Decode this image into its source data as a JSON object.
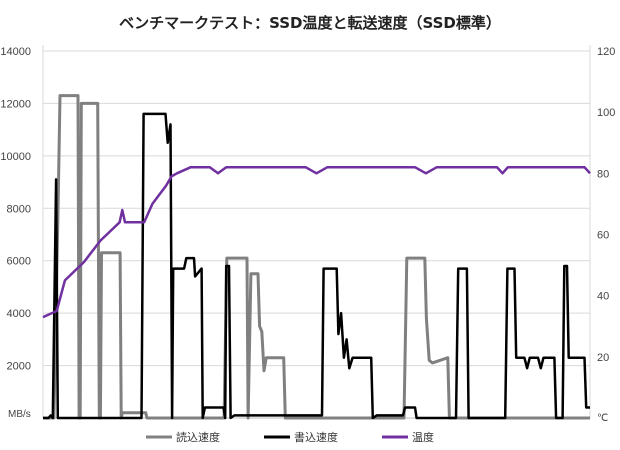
{
  "chart_data": {
    "type": "line",
    "title": "ベンチマークテスト：SSD温度と転送速度（SSD標準）",
    "y_left_unit": "MB/s",
    "y_right_unit": "℃",
    "y_left_ticks": [
      "14000",
      "12000",
      "10000",
      "8000",
      "6000",
      "4000",
      "2000"
    ],
    "y_right_ticks": [
      "120",
      "100",
      "80",
      "60",
      "40",
      "20"
    ],
    "ylim_left": [
      0,
      14000
    ],
    "ylim_right": [
      0,
      120
    ],
    "grid": true,
    "legend_position": "bottom",
    "x_range": [
      0,
      1000
    ],
    "series": [
      {
        "name": "読込速度",
        "color": "#808080",
        "axis": "left",
        "points": [
          [
            0,
            0
          ],
          [
            20,
            0
          ],
          [
            28,
            8500
          ],
          [
            31,
            12300
          ],
          [
            64,
            12300
          ],
          [
            66,
            0
          ],
          [
            68,
            0
          ],
          [
            70,
            12000
          ],
          [
            100,
            12000
          ],
          [
            103,
            0
          ],
          [
            105,
            0
          ],
          [
            107,
            6300
          ],
          [
            141,
            6300
          ],
          [
            143,
            0
          ],
          [
            145,
            200
          ],
          [
            188,
            200
          ],
          [
            190,
            0
          ],
          [
            331,
            0
          ],
          [
            336,
            6100
          ],
          [
            373,
            6100
          ],
          [
            375,
            0
          ],
          [
            380,
            5500
          ],
          [
            393,
            5500
          ],
          [
            396,
            3500
          ],
          [
            400,
            3300
          ],
          [
            404,
            1800
          ],
          [
            408,
            2300
          ],
          [
            440,
            2300
          ],
          [
            443,
            0
          ],
          [
            660,
            0
          ],
          [
            665,
            6100
          ],
          [
            698,
            6100
          ],
          [
            701,
            3800
          ],
          [
            706,
            2200
          ],
          [
            712,
            2100
          ],
          [
            740,
            2300
          ],
          [
            743,
            0
          ],
          [
            1000,
            0
          ]
        ]
      },
      {
        "name": "書込速度",
        "color": "#000000",
        "axis": "left",
        "points": [
          [
            0,
            0
          ],
          [
            10,
            0
          ],
          [
            14,
            100
          ],
          [
            18,
            0
          ],
          [
            24,
            9100
          ],
          [
            27,
            0
          ],
          [
            180,
            0
          ],
          [
            184,
            11600
          ],
          [
            224,
            11600
          ],
          [
            228,
            10500
          ],
          [
            233,
            11200
          ],
          [
            236,
            0
          ],
          [
            238,
            5700
          ],
          [
            258,
            5700
          ],
          [
            262,
            6100
          ],
          [
            276,
            6100
          ],
          [
            278,
            5400
          ],
          [
            290,
            5700
          ],
          [
            292,
            0
          ],
          [
            296,
            400
          ],
          [
            330,
            400
          ],
          [
            333,
            0
          ],
          [
            335,
            5800
          ],
          [
            340,
            5800
          ],
          [
            343,
            0
          ],
          [
            350,
            100
          ],
          [
            510,
            100
          ],
          [
            513,
            5700
          ],
          [
            537,
            5700
          ],
          [
            540,
            3200
          ],
          [
            545,
            4000
          ],
          [
            550,
            2300
          ],
          [
            555,
            3000
          ],
          [
            560,
            1900
          ],
          [
            566,
            2300
          ],
          [
            600,
            2300
          ],
          [
            603,
            0
          ],
          [
            610,
            100
          ],
          [
            658,
            100
          ],
          [
            662,
            400
          ],
          [
            680,
            400
          ],
          [
            683,
            0
          ],
          [
            755,
            0
          ],
          [
            759,
            5700
          ],
          [
            775,
            5700
          ],
          [
            778,
            0
          ],
          [
            800,
            0
          ],
          [
            845,
            0
          ],
          [
            849,
            5700
          ],
          [
            862,
            5700
          ],
          [
            865,
            2300
          ],
          [
            880,
            2300
          ],
          [
            885,
            1900
          ],
          [
            890,
            2300
          ],
          [
            905,
            2300
          ],
          [
            910,
            1900
          ],
          [
            915,
            2300
          ],
          [
            935,
            2300
          ],
          [
            938,
            0
          ],
          [
            950,
            0
          ],
          [
            953,
            5800
          ],
          [
            958,
            5800
          ],
          [
            961,
            2300
          ],
          [
            990,
            2300
          ],
          [
            993,
            400
          ],
          [
            1000,
            400
          ]
        ]
      },
      {
        "name": "温度",
        "color": "#7030A0",
        "axis": "right",
        "points": [
          [
            0,
            33
          ],
          [
            25,
            35
          ],
          [
            40,
            45
          ],
          [
            75,
            51
          ],
          [
            105,
            58
          ],
          [
            140,
            64
          ],
          [
            145,
            68
          ],
          [
            150,
            64
          ],
          [
            185,
            64
          ],
          [
            200,
            70
          ],
          [
            225,
            76
          ],
          [
            235,
            79
          ],
          [
            245,
            80
          ],
          [
            270,
            82
          ],
          [
            305,
            82
          ],
          [
            320,
            80
          ],
          [
            335,
            82
          ],
          [
            480,
            82
          ],
          [
            500,
            80
          ],
          [
            520,
            82
          ],
          [
            680,
            82
          ],
          [
            700,
            80
          ],
          [
            720,
            82
          ],
          [
            830,
            82
          ],
          [
            840,
            80
          ],
          [
            850,
            82
          ],
          [
            990,
            82
          ],
          [
            1000,
            80
          ]
        ]
      }
    ]
  }
}
